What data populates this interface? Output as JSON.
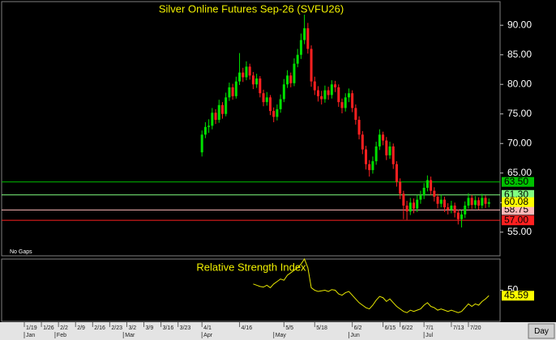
{
  "chart_data": {
    "type": "candlestick",
    "title": "Silver Online Futures Sep-26 (SVFU26)",
    "note": "No Gaps",
    "button": "Day",
    "categories": [
      "1/19",
      null,
      null,
      null,
      null,
      "1/26",
      null,
      null,
      null,
      null,
      "2/2",
      null,
      null,
      null,
      null,
      "2/9",
      null,
      null,
      null,
      null,
      "2/16",
      null,
      null,
      null,
      null,
      "2/23",
      null,
      null,
      null,
      null,
      "3/2",
      null,
      null,
      null,
      null,
      "3/9",
      null,
      null,
      null,
      null,
      "3/16",
      null,
      null,
      null,
      null,
      "3/23",
      null,
      null,
      null,
      null,
      null,
      null,
      "4/1",
      null,
      null,
      null,
      null,
      null,
      null,
      null,
      null,
      null,
      null,
      "4/16",
      null,
      null,
      null,
      null,
      null,
      null,
      null,
      null,
      null,
      null,
      null,
      null,
      "5/5",
      null,
      null,
      null,
      null,
      null,
      null,
      null,
      null,
      "5/18",
      null,
      null,
      null,
      null,
      null,
      null,
      null,
      null,
      null,
      null,
      "6/2",
      null,
      null,
      null,
      null,
      null,
      null,
      null,
      null,
      "6/15",
      null,
      null,
      null,
      null,
      "6/22",
      null,
      null,
      null,
      null,
      null,
      null,
      "7/1",
      null,
      null,
      null,
      null,
      null,
      null,
      null,
      "7/13",
      null,
      null,
      null,
      null,
      "7/20",
      null,
      null,
      null,
      null,
      null,
      null
    ],
    "months": [
      "Jan",
      null,
      null,
      null,
      null,
      null,
      null,
      null,
      null,
      "Feb",
      null,
      null,
      null,
      null,
      null,
      null,
      null,
      null,
      null,
      null,
      null,
      null,
      null,
      null,
      null,
      null,
      null,
      null,
      null,
      "Mar",
      null,
      null,
      null,
      null,
      null,
      null,
      null,
      null,
      null,
      null,
      null,
      null,
      null,
      null,
      null,
      null,
      null,
      null,
      null,
      null,
      null,
      null,
      "Apr",
      null,
      null,
      null,
      null,
      null,
      null,
      null,
      null,
      null,
      null,
      null,
      null,
      null,
      null,
      null,
      null,
      null,
      null,
      null,
      null,
      "May",
      null,
      null,
      null,
      null,
      null,
      null,
      null,
      null,
      null,
      null,
      null,
      null,
      null,
      null,
      null,
      null,
      null,
      null,
      null,
      null,
      null,
      "Jun",
      null,
      null,
      null,
      null,
      null,
      null,
      null,
      null,
      null,
      null,
      null,
      null,
      null,
      null,
      null,
      null,
      null,
      null,
      null,
      null,
      null,
      "Jul",
      null,
      null,
      null,
      null,
      null,
      null,
      null,
      null,
      null,
      null,
      null,
      null,
      null,
      null,
      null,
      null,
      null,
      null,
      null
    ],
    "open": [
      null,
      null,
      null,
      null,
      null,
      null,
      null,
      null,
      null,
      null,
      null,
      null,
      null,
      null,
      null,
      null,
      null,
      null,
      null,
      null,
      null,
      null,
      null,
      null,
      null,
      null,
      null,
      null,
      null,
      null,
      null,
      null,
      null,
      null,
      null,
      null,
      null,
      null,
      null,
      null,
      null,
      null,
      null,
      null,
      null,
      null,
      null,
      null,
      null,
      null,
      null,
      null,
      68.5,
      71.5,
      72.8,
      73.0,
      75.2,
      74.0,
      76.5,
      75.0,
      77.8,
      79.5,
      78.0,
      80.5,
      82.0,
      81.2,
      83.0,
      81.5,
      80.0,
      81.0,
      78.5,
      77.0,
      77.8,
      75.5,
      74.5,
      75.8,
      77.5,
      80.0,
      81.5,
      80.2,
      83.5,
      85.0,
      87.5,
      89.5,
      86.0,
      80.5,
      79.0,
      78.0,
      77.5,
      79.0,
      78.2,
      80.0,
      79.5,
      77.0,
      76.0,
      77.8,
      78.5,
      76.0,
      74.0,
      71.5,
      69.0,
      66.5,
      65.5,
      67.0,
      69.5,
      71.5,
      70.5,
      68.0,
      69.5,
      66.5,
      63.5,
      61.5,
      59.5,
      58.5,
      60.0,
      59.0,
      60.5,
      61.2,
      62.5,
      63.8,
      62.0,
      61.0,
      59.8,
      60.5,
      59.2,
      58.8,
      59.5,
      58.3,
      57.2,
      58.0,
      59.5,
      60.8,
      59.6,
      60.4,
      59.5,
      60.8,
      59.8
    ],
    "high": [
      null,
      null,
      null,
      null,
      null,
      null,
      null,
      null,
      null,
      null,
      null,
      null,
      null,
      null,
      null,
      null,
      null,
      null,
      null,
      null,
      null,
      null,
      null,
      null,
      null,
      null,
      null,
      null,
      null,
      null,
      null,
      null,
      null,
      null,
      null,
      null,
      null,
      null,
      null,
      null,
      null,
      null,
      null,
      null,
      null,
      null,
      null,
      null,
      null,
      null,
      null,
      null,
      72.2,
      73.6,
      74.1,
      76.0,
      75.8,
      77.4,
      77.0,
      78.6,
      80.3,
      80.1,
      81.3,
      85.3,
      82.8,
      83.9,
      83.5,
      82.1,
      81.8,
      81.4,
      79.1,
      78.7,
      78.2,
      76.1,
      76.6,
      78.3,
      80.9,
      82.4,
      82.0,
      84.4,
      86.0,
      88.6,
      91.8,
      90.4,
      86.6,
      81.3,
      79.7,
      78.9,
      79.8,
      79.6,
      80.7,
      80.6,
      80.0,
      77.6,
      78.5,
      79.3,
      79.0,
      76.6,
      74.6,
      72.1,
      69.6,
      67.2,
      67.8,
      70.3,
      72.4,
      72.0,
      71.1,
      70.3,
      70.0,
      67.0,
      64.1,
      62.0,
      60.3,
      60.8,
      60.7,
      61.3,
      62.0,
      63.3,
      64.6,
      64.4,
      62.6,
      61.5,
      61.3,
      61.0,
      59.9,
      60.3,
      60.0,
      58.8,
      58.7,
      60.2,
      61.6,
      61.3,
      61.1,
      60.9,
      61.5,
      61.2,
      60.7
    ],
    "low": [
      null,
      null,
      null,
      null,
      null,
      null,
      null,
      null,
      null,
      null,
      null,
      null,
      null,
      null,
      null,
      null,
      null,
      null,
      null,
      null,
      null,
      null,
      null,
      null,
      null,
      null,
      null,
      null,
      null,
      null,
      null,
      null,
      null,
      null,
      null,
      null,
      null,
      null,
      null,
      null,
      null,
      null,
      null,
      null,
      null,
      null,
      null,
      null,
      null,
      null,
      null,
      null,
      67.8,
      70.9,
      71.8,
      72.4,
      73.3,
      73.5,
      74.2,
      74.6,
      77.2,
      77.4,
      77.6,
      79.9,
      80.4,
      80.7,
      80.8,
      79.2,
      79.4,
      77.8,
      76.3,
      76.4,
      74.8,
      73.6,
      73.9,
      75.2,
      77.0,
      79.4,
      79.5,
      79.7,
      82.9,
      84.3,
      86.8,
      85.2,
      79.6,
      78.2,
      77.1,
      76.6,
      76.9,
      77.4,
      77.6,
      78.7,
      76.2,
      75.1,
      75.4,
      77.0,
      75.3,
      73.2,
      70.7,
      68.2,
      65.6,
      64.4,
      64.9,
      66.4,
      68.9,
      69.7,
      67.2,
      67.4,
      65.7,
      62.7,
      60.6,
      57.2,
      57.1,
      57.9,
      58.2,
      58.4,
      59.8,
      60.6,
      61.9,
      61.3,
      60.2,
      59.0,
      59.2,
      58.4,
      58.0,
      58.2,
      57.5,
      56.3,
      55.8,
      57.4,
      59.0,
      58.9,
      59.0,
      58.8,
      59.0,
      59.1,
      59.2
    ],
    "close": [
      null,
      null,
      null,
      null,
      null,
      null,
      null,
      null,
      null,
      null,
      null,
      null,
      null,
      null,
      null,
      null,
      null,
      null,
      null,
      null,
      null,
      null,
      null,
      null,
      null,
      null,
      null,
      null,
      null,
      null,
      null,
      null,
      null,
      null,
      null,
      null,
      null,
      null,
      null,
      null,
      null,
      null,
      null,
      null,
      null,
      null,
      null,
      null,
      null,
      null,
      null,
      null,
      71.5,
      72.8,
      73.0,
      75.2,
      74.0,
      76.5,
      75.0,
      77.8,
      79.5,
      78.0,
      80.5,
      82.0,
      81.2,
      83.0,
      81.5,
      80.0,
      81.0,
      78.5,
      77.0,
      77.8,
      75.5,
      74.5,
      75.8,
      77.5,
      80.0,
      81.5,
      80.2,
      83.5,
      85.0,
      87.5,
      89.5,
      86.0,
      80.5,
      79.0,
      78.0,
      77.5,
      79.0,
      78.2,
      80.0,
      79.5,
      77.0,
      76.0,
      77.8,
      78.5,
      76.0,
      74.0,
      71.5,
      69.0,
      66.5,
      65.5,
      67.0,
      69.5,
      71.5,
      70.5,
      68.0,
      69.5,
      66.5,
      63.5,
      61.5,
      59.5,
      58.5,
      60.0,
      59.0,
      60.5,
      61.2,
      62.5,
      63.8,
      62.0,
      61.0,
      59.8,
      60.5,
      59.2,
      58.8,
      59.5,
      58.3,
      57.2,
      58.0,
      59.5,
      60.8,
      59.6,
      60.4,
      59.5,
      60.8,
      59.8,
      60.08
    ],
    "up_color": "#00e000",
    "down_color": "#ff2020",
    "last_color": "#ffff00",
    "ylim": [
      51,
      94
    ],
    "yticks": [
      {
        "value": 55,
        "label": "55.00"
      },
      {
        "value": 60,
        "label": "60.00"
      },
      {
        "value": 65,
        "label": "65.00"
      },
      {
        "value": 70,
        "label": "70.00"
      },
      {
        "value": 75,
        "label": "75.00"
      },
      {
        "value": 80,
        "label": "80.00"
      },
      {
        "value": 85,
        "label": "85.00"
      },
      {
        "value": 90,
        "label": "90.00"
      }
    ],
    "levels": [
      {
        "value": 63.5,
        "label": "63.50",
        "color": "#00c000"
      },
      {
        "value": 61.3,
        "label": "61.30",
        "color": "#80ff80"
      },
      {
        "value": 58.75,
        "label": "58.75",
        "color": "#ffb8b8"
      },
      {
        "value": 57,
        "label": "57.00",
        "color": "#ff2020"
      }
    ],
    "indicator": {
      "type": "line",
      "title": "Relative Strength Index",
      "color": "#e8e800",
      "ylim": [
        25,
        75
      ],
      "yticks": [
        50
      ],
      "values": [
        null,
        null,
        null,
        null,
        null,
        null,
        null,
        null,
        null,
        null,
        null,
        null,
        null,
        null,
        null,
        null,
        null,
        null,
        null,
        null,
        null,
        null,
        null,
        null,
        null,
        null,
        null,
        null,
        null,
        null,
        null,
        null,
        null,
        null,
        null,
        null,
        null,
        null,
        null,
        null,
        null,
        null,
        null,
        null,
        null,
        null,
        null,
        null,
        null,
        null,
        null,
        null,
        null,
        null,
        null,
        null,
        null,
        null,
        null,
        null,
        null,
        null,
        null,
        null,
        null,
        null,
        null,
        55,
        54,
        53,
        52.5,
        54,
        52,
        55,
        57,
        59,
        58,
        62,
        64,
        66,
        68,
        71,
        75,
        68,
        52,
        50,
        49,
        49.5,
        50,
        49,
        50.5,
        50,
        47,
        46,
        48,
        49,
        46,
        43,
        40,
        38,
        36,
        35,
        38,
        42,
        45,
        44,
        41,
        43,
        40,
        37,
        35,
        33,
        32,
        34,
        33,
        34,
        35,
        38,
        40,
        37,
        36,
        34,
        35,
        34,
        33,
        34,
        33,
        32,
        33,
        36,
        39,
        37,
        39,
        38,
        41,
        43,
        45.59
      ]
    }
  }
}
